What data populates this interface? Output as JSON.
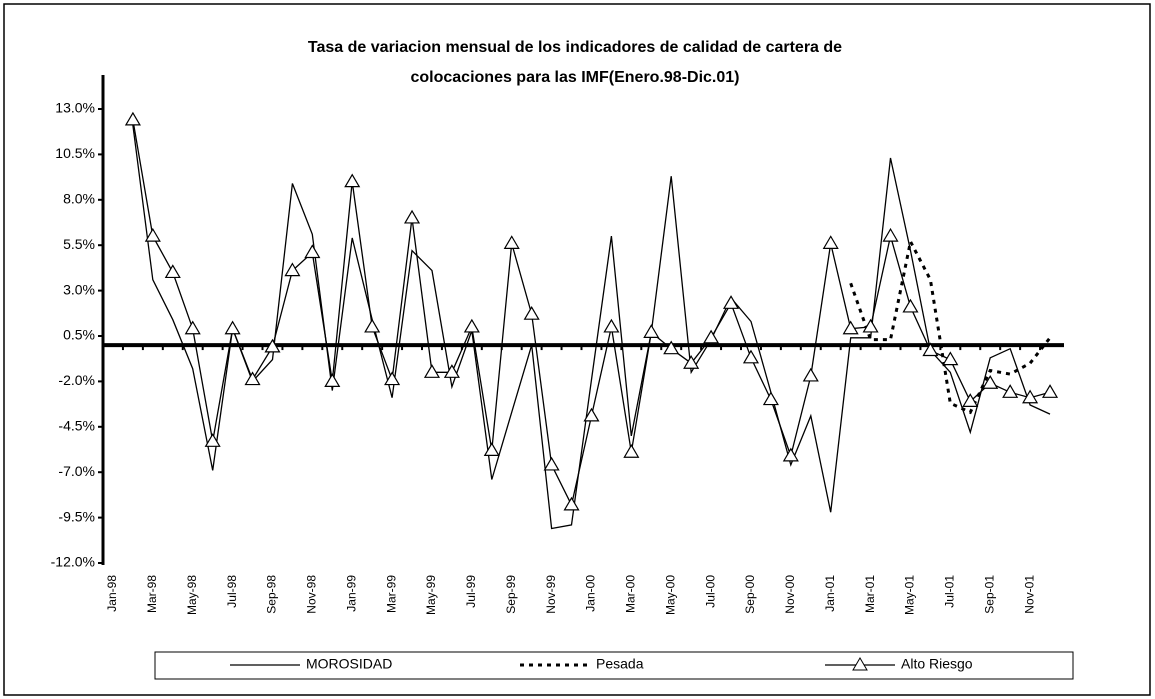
{
  "chart_data": {
    "type": "line",
    "title": [
      "Tasa de variacion mensual de los indicadores de calidad de cartera de",
      "colocaciones para las IMF(Enero.98-Dic.01)"
    ],
    "categories": [
      "Jan-98",
      null,
      "Mar-98",
      null,
      "May-98",
      null,
      "Jul-98",
      null,
      "Sep-98",
      null,
      "Nov-98",
      null,
      "Jan-99",
      null,
      "Mar-99",
      null,
      "May-99",
      null,
      "Jul-99",
      null,
      "Sep-99",
      null,
      "Nov-99",
      null,
      "Jan-00",
      null,
      "Mar-00",
      null,
      "May-00",
      null,
      "Jul-00",
      null,
      "Sep-00",
      null,
      "Nov-00",
      null,
      "Jan-01",
      null,
      "Mar-01",
      null,
      "May-01",
      null,
      "Jul-01",
      null,
      "Sep-01",
      null,
      "Nov-01",
      null
    ],
    "series": [
      {
        "name": "MOROSIDAD",
        "color": "#000000",
        "dash": "solid",
        "marker": "none",
        "values": [
          null,
          12.1,
          3.6,
          1.4,
          -1.3,
          -6.9,
          0.9,
          -2.0,
          -0.8,
          8.9,
          6.1,
          -2.5,
          5.9,
          1.4,
          -2.9,
          5.2,
          4.1,
          -2.3,
          0.8,
          -7.4,
          -3.7,
          0.0,
          -10.1,
          -9.9,
          -1.9,
          6.0,
          -5.0,
          0.7,
          9.3,
          -1.5,
          0.3,
          2.6,
          1.3,
          -2.6,
          -6.6,
          -3.9,
          -9.2,
          0.4,
          0.4,
          10.3,
          5.2,
          -0.3,
          -1.5,
          -4.8,
          -0.7,
          -0.2,
          -3.3,
          -3.8
        ]
      },
      {
        "name": "Pesada",
        "color": "#000000",
        "dash": "dotted",
        "marker": "none",
        "values": [
          null,
          null,
          null,
          null,
          null,
          null,
          null,
          null,
          null,
          null,
          null,
          null,
          null,
          null,
          null,
          null,
          null,
          null,
          null,
          null,
          null,
          null,
          null,
          null,
          null,
          null,
          null,
          null,
          null,
          null,
          null,
          null,
          null,
          null,
          null,
          null,
          null,
          3.4,
          0.3,
          0.3,
          5.7,
          3.6,
          -3.2,
          -3.7,
          -1.4,
          -1.6,
          -1.0,
          0.4
        ]
      },
      {
        "name": "Alto Riesgo",
        "color": "#000000",
        "dash": "solid",
        "marker": "triangle",
        "values": [
          null,
          12.4,
          6.0,
          4.0,
          0.9,
          -5.3,
          0.9,
          -1.9,
          -0.1,
          4.1,
          5.1,
          -2.0,
          9.0,
          1.0,
          -1.9,
          7.0,
          -1.5,
          -1.5,
          1.0,
          -5.8,
          5.6,
          1.7,
          -6.6,
          -8.8,
          -3.9,
          1.0,
          -5.9,
          0.7,
          -0.2,
          -1.0,
          0.4,
          2.3,
          -0.7,
          -3.0,
          -6.1,
          -1.7,
          5.6,
          0.9,
          1.0,
          6.0,
          2.1,
          -0.3,
          -0.8,
          -3.1,
          -2.1,
          -2.6,
          -2.9,
          -2.6
        ]
      }
    ],
    "ylim": [
      -12,
      13
    ],
    "yticks": [
      {
        "value": -12,
        "label": "-12.0%"
      },
      {
        "value": -9.5,
        "label": "-9.5%"
      },
      {
        "value": -7,
        "label": "-7.0%"
      },
      {
        "value": -4.5,
        "label": "-4.5%"
      },
      {
        "value": -2,
        "label": "-2.0%"
      },
      {
        "value": 0.5,
        "label": "0.5%"
      },
      {
        "value": 3,
        "label": "3.0%"
      },
      {
        "value": 5.5,
        "label": "5.5%"
      },
      {
        "value": 8,
        "label": "8.0%"
      },
      {
        "value": 10.5,
        "label": "10.5%"
      },
      {
        "value": 13,
        "label": "13.0%"
      }
    ],
    "grid": false,
    "legend": "bottom"
  }
}
